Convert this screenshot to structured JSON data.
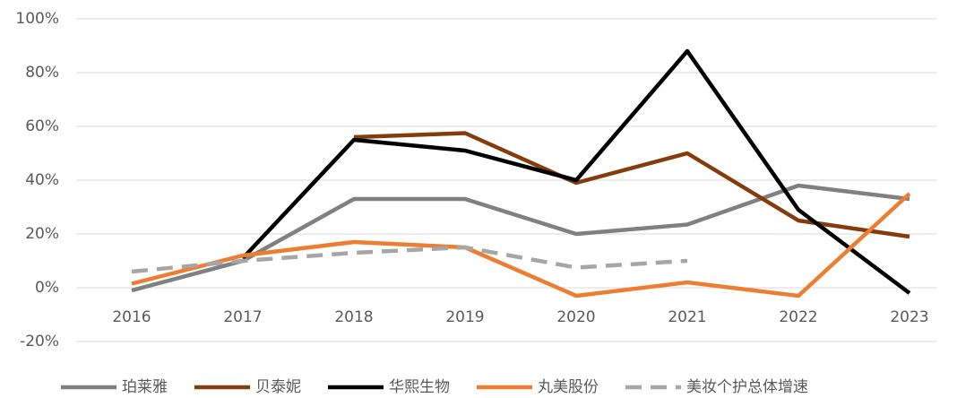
{
  "chart_data": {
    "type": "line",
    "categories": [
      "2016",
      "2017",
      "2018",
      "2019",
      "2020",
      "2021",
      "2022",
      "2023"
    ],
    "series": [
      {
        "name": "珀莱雅",
        "color": "#808080",
        "values": [
          -1,
          10,
          33,
          33,
          20,
          23.5,
          38,
          33
        ]
      },
      {
        "name": "贝泰妮",
        "color": "#843c0c",
        "values": [
          null,
          null,
          56,
          57.5,
          39,
          50,
          25,
          19
        ]
      },
      {
        "name": "华熙生物",
        "color": "#000000",
        "values": [
          null,
          11,
          55,
          51,
          40,
          88,
          29,
          -2
        ]
      },
      {
        "name": "丸美股份",
        "color": "#ed7d31",
        "values": [
          1.5,
          12,
          17,
          15,
          -3,
          2,
          -3,
          35
        ]
      },
      {
        "name": "美妆个护总体增速",
        "color": "#a6a6a6",
        "dash": true,
        "values": [
          6,
          10,
          13,
          15,
          7.5,
          10,
          null,
          null
        ]
      }
    ],
    "ylim": [
      -20,
      100
    ],
    "yticks": [
      {
        "value": -20,
        "label": "-20%"
      },
      {
        "value": 0,
        "label": "0%"
      },
      {
        "value": 20,
        "label": "20%"
      },
      {
        "value": 40,
        "label": "40%"
      },
      {
        "value": 60,
        "label": "60%"
      },
      {
        "value": 80,
        "label": "80%"
      },
      {
        "value": 100,
        "label": "100%"
      }
    ],
    "grid": true,
    "legend": "bottom"
  }
}
